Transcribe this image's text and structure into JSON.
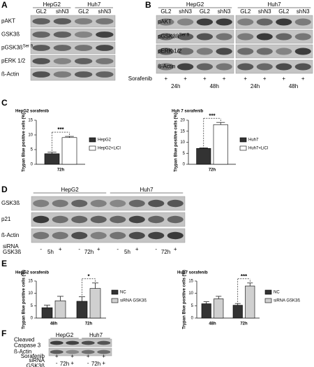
{
  "panel_labels": [
    "A",
    "B",
    "C",
    "D",
    "E",
    "F"
  ],
  "panel_a": {
    "groups": [
      "HepG2",
      "Huh7"
    ],
    "lanes": [
      "GL2",
      "shN3",
      "GL2",
      "shN3"
    ],
    "rows": [
      {
        "name": "pAKT"
      },
      {
        "name": "GSK3ß"
      },
      {
        "name": "pGSK3ß",
        "sup": "Ser 9"
      },
      {
        "name": "pERK 1/2"
      },
      {
        "name": "ß-Actin"
      }
    ]
  },
  "panel_b": {
    "groups": [
      "HepG2",
      "Huh7"
    ],
    "lanes": [
      "GL2",
      "shN3",
      "GL2",
      "shN3",
      "GL2",
      "shN3",
      "GL2",
      "shN3"
    ],
    "rows": [
      {
        "name": "pAKT"
      },
      {
        "name": "pGSK3ß",
        "sup": "Ser 9"
      },
      {
        "name": "pERK 1/2"
      },
      {
        "name": "ß-Actin"
      }
    ],
    "treatments": [
      {
        "lines": [
          "Sorafenib"
        ],
        "signs": [
          "+",
          "+",
          "+",
          "+",
          "+",
          "+",
          "+",
          "+"
        ]
      }
    ],
    "times": [
      "24h",
      "48h",
      "24h",
      "48h"
    ]
  },
  "panel_d": {
    "groups": [
      "HepG2",
      "Huh7"
    ],
    "rows": [
      {
        "name": "GSK3ß"
      },
      {
        "name": "p21"
      },
      {
        "name": "ß-Actin"
      }
    ],
    "treatments": [
      {
        "lines": [
          "siRNA",
          "GSK3ß"
        ],
        "signs": [
          "-",
          "+",
          "-",
          "+",
          "-",
          "+",
          "-",
          "+"
        ]
      }
    ],
    "times": [
      "5h",
      "72h",
      "5h",
      "72h"
    ]
  },
  "panel_f": {
    "groups": [
      "HepG2",
      "Huh7"
    ],
    "rows": [
      {
        "lines": [
          "Cleaved",
          "Caspase 3"
        ]
      },
      {
        "name": "ß-Actin"
      }
    ],
    "treatments": [
      {
        "lines": [
          "Sorafenib"
        ],
        "signs": [
          "+",
          "+",
          "+",
          "+"
        ]
      },
      {
        "lines": [
          "siRNA",
          "GSK3ß"
        ],
        "signs": [
          "-",
          "+",
          "-",
          "+"
        ]
      }
    ],
    "times": [
      "72h",
      "72h"
    ]
  },
  "chart_data": [
    {
      "type": "bar",
      "title": "HepG2 sorafenib",
      "ylabel": "Trypan Blue positive cells (%)",
      "categories": [
        "72h"
      ],
      "series": [
        {
          "name": "HepG2",
          "color": "#333333",
          "values": [
            3.6
          ],
          "errors": [
            0.5
          ]
        },
        {
          "name": "HepG2+LiCl",
          "color": "#ffffff",
          "values": [
            9.1
          ],
          "errors": [
            0.4
          ]
        }
      ],
      "ylim": [
        0,
        15
      ],
      "yticks": [
        0,
        5,
        10,
        15
      ],
      "annotations": [
        {
          "text": "***",
          "category": "72h"
        }
      ]
    },
    {
      "type": "bar",
      "title": "Huh 7 sorafenib",
      "ylabel": "Trypan Blue positive cells (%)",
      "categories": [
        "72h"
      ],
      "series": [
        {
          "name": "Huh7",
          "color": "#333333",
          "values": [
            7.2
          ],
          "errors": [
            0.3
          ]
        },
        {
          "name": "Huh7+LiCl",
          "color": "#ffffff",
          "values": [
            18
          ],
          "errors": [
            1
          ]
        }
      ],
      "ylim": [
        0,
        20
      ],
      "yticks": [
        0,
        5,
        10,
        15,
        20
      ],
      "annotations": [
        {
          "text": "***",
          "category": "72h"
        }
      ]
    },
    {
      "type": "bar",
      "title": "HepG2 sorafenib",
      "ylabel": "Trypan Blue positive cells (%)",
      "categories": [
        "48h",
        "72h"
      ],
      "series": [
        {
          "name": "NC",
          "color": "#333333",
          "values": [
            4.2,
            6.8
          ],
          "errors": [
            1,
            1.8
          ]
        },
        {
          "name": "siRNA GSK3ß",
          "color": "#d0d0d0",
          "values": [
            7,
            12
          ],
          "errors": [
            1.8,
            2.2
          ]
        }
      ],
      "ylim": [
        0,
        15
      ],
      "yticks": [
        0,
        5,
        10,
        15
      ],
      "annotations": [
        {
          "text": "*",
          "category": "72h"
        }
      ]
    },
    {
      "type": "bar",
      "title": "Huh7 sorafenib",
      "ylabel": "Trypan Blue positive cells (%)",
      "categories": [
        "48h",
        "72h"
      ],
      "series": [
        {
          "name": "NC",
          "color": "#333333",
          "values": [
            5.8,
            5.2
          ],
          "errors": [
            0.8,
            0.7
          ]
        },
        {
          "name": "siRNA GSK3ß",
          "color": "#d0d0d0",
          "values": [
            7.8,
            13
          ],
          "errors": [
            1,
            1.2
          ]
        }
      ],
      "ylim": [
        0,
        15
      ],
      "yticks": [
        0,
        5,
        10,
        15
      ],
      "annotations": [
        {
          "text": "***",
          "category": "72h"
        }
      ]
    }
  ]
}
